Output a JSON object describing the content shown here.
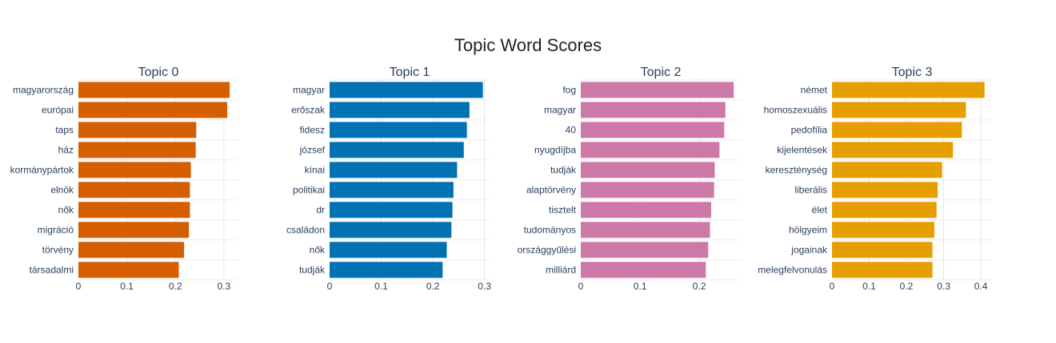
{
  "chart_data": {
    "title": "Topic Word Scores",
    "type": "bar",
    "orientation": "horizontal",
    "grid": true,
    "panels": [
      {
        "title": "Topic 0",
        "color": "#D55E00",
        "xlim": [
          0,
          0.33
        ],
        "xticks": [
          0,
          0.1,
          0.2,
          0.3
        ],
        "categories": [
          "magyarország",
          "európai",
          "taps",
          "ház",
          "kormánypártok",
          "elnök",
          "nők",
          "migráció",
          "törvény",
          "társadalmi"
        ],
        "values": [
          0.312,
          0.307,
          0.243,
          0.242,
          0.232,
          0.23,
          0.23,
          0.228,
          0.218,
          0.207
        ]
      },
      {
        "title": "Topic 1",
        "color": "#0072B2",
        "xlim": [
          0,
          0.31
        ],
        "xticks": [
          0,
          0.1,
          0.2,
          0.3
        ],
        "categories": [
          "magyar",
          "erőszak",
          "fidesz",
          "józsef",
          "kínai",
          "politikai",
          "dr",
          "családon",
          "nők",
          "tudják"
        ],
        "values": [
          0.297,
          0.271,
          0.266,
          0.26,
          0.247,
          0.24,
          0.238,
          0.236,
          0.227,
          0.219
        ]
      },
      {
        "title": "Topic 2",
        "color": "#CC79A7",
        "xlim": [
          0,
          0.27
        ],
        "xticks": [
          0,
          0.1,
          0.2
        ],
        "categories": [
          "fog",
          "magyar",
          "40",
          "nyugdíjba",
          "tudják",
          "alaptörvény",
          "tisztelt",
          "tudományos",
          "országgyűlési",
          "milliárd"
        ],
        "values": [
          0.258,
          0.244,
          0.242,
          0.234,
          0.226,
          0.225,
          0.22,
          0.218,
          0.215,
          0.211
        ]
      },
      {
        "title": "Topic 3",
        "color": "#E69F00",
        "xlim": [
          0,
          0.43
        ],
        "xticks": [
          0,
          0.1,
          0.2,
          0.3,
          0.4
        ],
        "categories": [
          "német",
          "homoszexuális",
          "pedofília",
          "kijelentések",
          "kereszténység",
          "liberális",
          "élet",
          "hölgyeim",
          "jogainak",
          "melegfelvonulás"
        ],
        "values": [
          0.41,
          0.36,
          0.349,
          0.325,
          0.296,
          0.284,
          0.281,
          0.275,
          0.27,
          0.27
        ]
      }
    ]
  }
}
